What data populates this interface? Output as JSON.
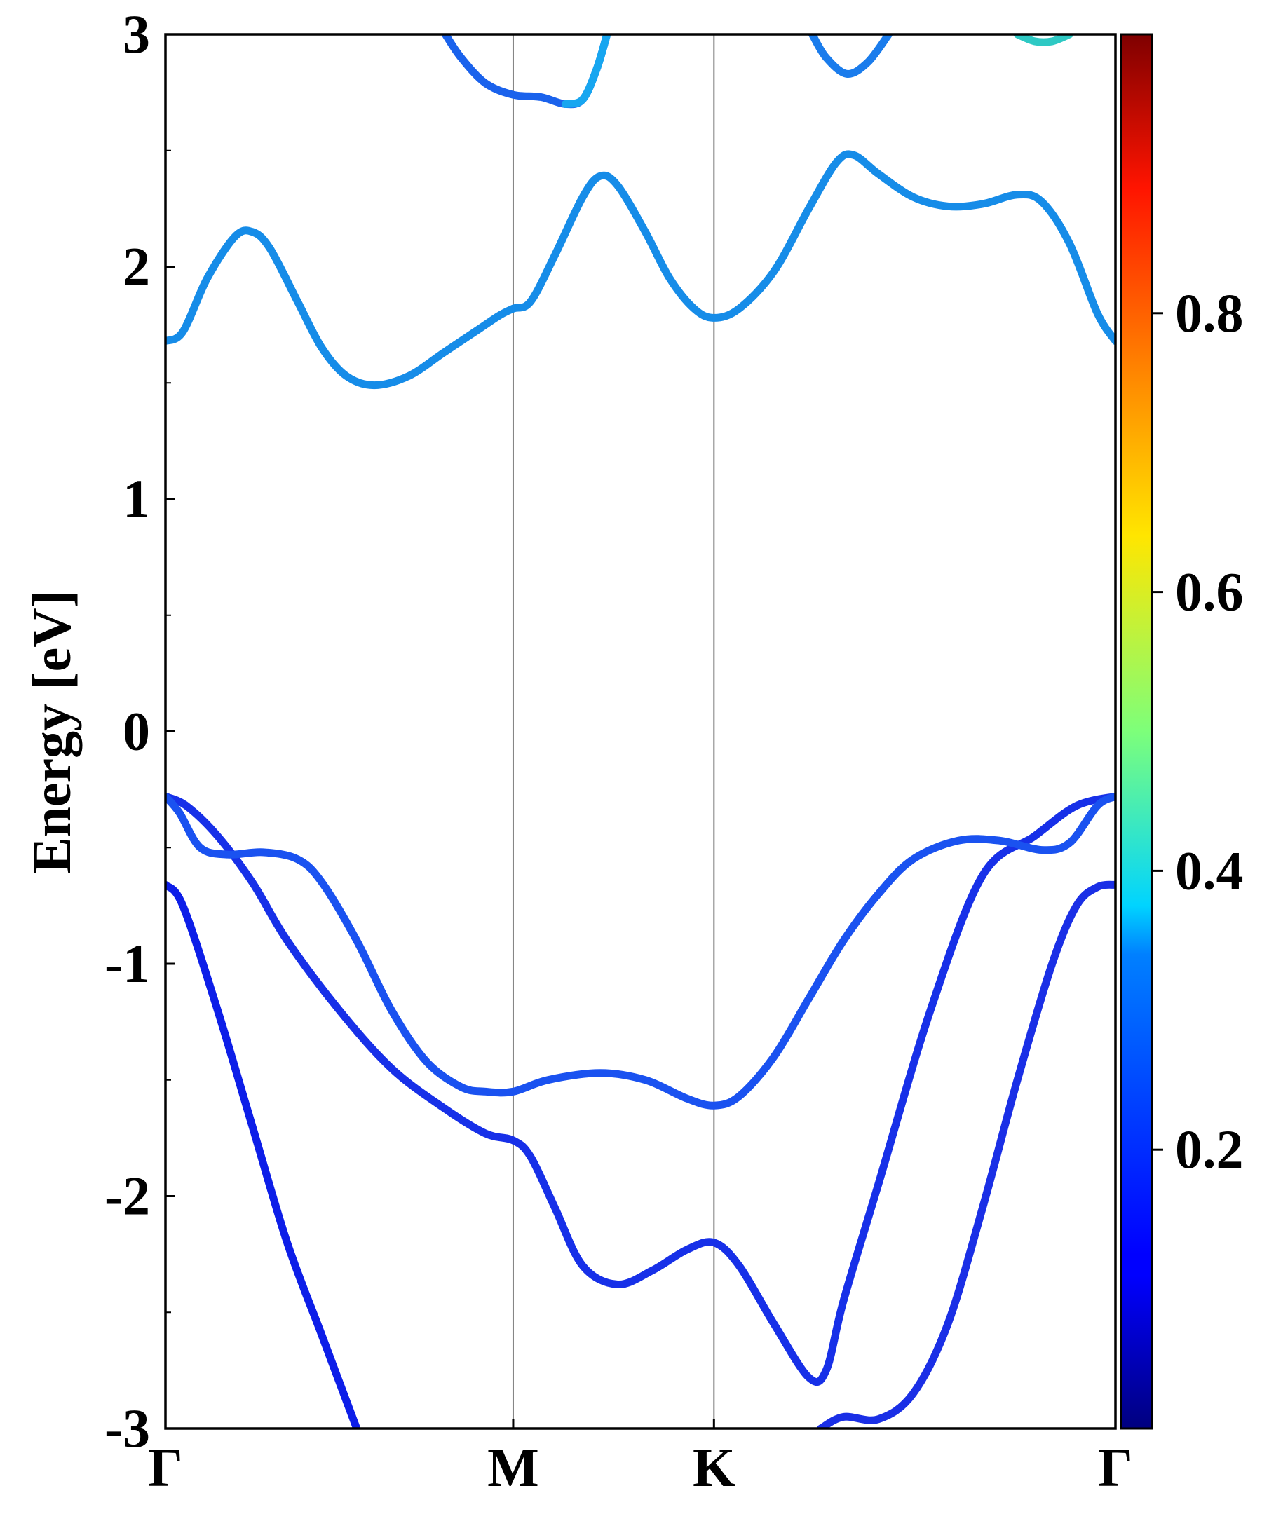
{
  "chart_data": {
    "type": "line",
    "title": "",
    "xlabel": "",
    "ylabel": "Energy [eV]",
    "ylim": [
      -3,
      3
    ],
    "y_ticks": [
      -3,
      -2,
      -1,
      0,
      1,
      2,
      3
    ],
    "y_tick_labels": [
      "-3",
      "-2",
      "-1",
      "0",
      "1",
      "2",
      "3"
    ],
    "x_ticks": [
      {
        "label": "Γ",
        "pos": 0.0
      },
      {
        "label": "M",
        "pos": 1.0
      },
      {
        "label": "K",
        "pos": 1.5774
      },
      {
        "label": "Γ",
        "pos": 2.7321
      }
    ],
    "xlim": [
      0,
      2.7321
    ],
    "grid": false,
    "vlines_at_ticks": true,
    "colorbar": {
      "range": [
        0,
        1
      ],
      "ticks": [
        0.2,
        0.4,
        0.6,
        0.8
      ],
      "tick_labels": [
        "0.2",
        "0.4",
        "0.6",
        "0.8"
      ],
      "colormap": "jet"
    },
    "series": [
      {
        "color": "#0d1ee8",
        "points": [
          [
            0,
            -0.66
          ],
          [
            0.05,
            -0.75
          ],
          [
            0.15,
            -1.2
          ],
          [
            0.25,
            -1.7
          ],
          [
            0.35,
            -2.2
          ],
          [
            0.45,
            -2.6
          ],
          [
            0.55,
            -3.0
          ]
        ]
      },
      {
        "color": "#1730e8",
        "points": [
          [
            0,
            -0.28
          ],
          [
            0.06,
            -0.32
          ],
          [
            0.15,
            -0.45
          ],
          [
            0.25,
            -0.65
          ],
          [
            0.35,
            -0.9
          ],
          [
            0.5,
            -1.2
          ],
          [
            0.65,
            -1.45
          ],
          [
            0.8,
            -1.62
          ],
          [
            0.92,
            -1.73
          ],
          [
            1.0,
            -1.76
          ],
          [
            1.05,
            -1.83
          ],
          [
            1.12,
            -2.05
          ],
          [
            1.2,
            -2.3
          ],
          [
            1.3,
            -2.38
          ],
          [
            1.4,
            -2.32
          ],
          [
            1.5,
            -2.23
          ],
          [
            1.5774,
            -2.2
          ],
          [
            1.65,
            -2.3
          ],
          [
            1.75,
            -2.55
          ],
          [
            1.85,
            -2.78
          ],
          [
            1.9,
            -2.75
          ],
          [
            1.95,
            -2.45
          ],
          [
            2.05,
            -1.95
          ],
          [
            2.2,
            -1.2
          ],
          [
            2.35,
            -0.62
          ],
          [
            2.5,
            -0.45
          ],
          [
            2.62,
            -0.32
          ],
          [
            2.7321,
            -0.28
          ]
        ]
      },
      {
        "color": "#1a52f0",
        "points": [
          [
            0,
            -0.28
          ],
          [
            0.04,
            -0.35
          ],
          [
            0.1,
            -0.5
          ],
          [
            0.18,
            -0.53
          ],
          [
            0.28,
            -0.52
          ],
          [
            0.38,
            -0.55
          ],
          [
            0.45,
            -0.65
          ],
          [
            0.55,
            -0.9
          ],
          [
            0.65,
            -1.2
          ],
          [
            0.75,
            -1.42
          ],
          [
            0.85,
            -1.53
          ],
          [
            0.92,
            -1.55
          ],
          [
            1.0,
            -1.55
          ],
          [
            1.1,
            -1.5
          ],
          [
            1.25,
            -1.47
          ],
          [
            1.38,
            -1.5
          ],
          [
            1.5,
            -1.58
          ],
          [
            1.5774,
            -1.61
          ],
          [
            1.65,
            -1.57
          ],
          [
            1.75,
            -1.4
          ],
          [
            1.85,
            -1.15
          ],
          [
            1.95,
            -0.9
          ],
          [
            2.05,
            -0.7
          ],
          [
            2.15,
            -0.55
          ],
          [
            2.28,
            -0.47
          ],
          [
            2.4,
            -0.47
          ],
          [
            2.52,
            -0.51
          ],
          [
            2.6,
            -0.48
          ],
          [
            2.68,
            -0.32
          ],
          [
            2.7321,
            -0.28
          ]
        ]
      },
      {
        "color": "#1a2fe6",
        "points": [
          [
            1.8846,
            -3.0
          ],
          [
            1.95,
            -2.95
          ],
          [
            2.05,
            -2.96
          ],
          [
            2.15,
            -2.85
          ],
          [
            2.25,
            -2.55
          ],
          [
            2.35,
            -2.05
          ],
          [
            2.45,
            -1.5
          ],
          [
            2.55,
            -1.0
          ],
          [
            2.62,
            -0.75
          ],
          [
            2.68,
            -0.67
          ],
          [
            2.7321,
            -0.66
          ]
        ]
      },
      {
        "color": "#168ce8",
        "points": [
          [
            0,
            1.68
          ],
          [
            0.05,
            1.72
          ],
          [
            0.12,
            1.95
          ],
          [
            0.2,
            2.13
          ],
          [
            0.25,
            2.15
          ],
          [
            0.3,
            2.08
          ],
          [
            0.38,
            1.85
          ],
          [
            0.45,
            1.65
          ],
          [
            0.52,
            1.53
          ],
          [
            0.6,
            1.49
          ],
          [
            0.7,
            1.53
          ],
          [
            0.8,
            1.63
          ],
          [
            0.9,
            1.73
          ],
          [
            0.96,
            1.79
          ],
          [
            1.0,
            1.82
          ],
          [
            1.05,
            1.85
          ],
          [
            1.12,
            2.05
          ],
          [
            1.2,
            2.3
          ],
          [
            1.25,
            2.39
          ],
          [
            1.3,
            2.35
          ],
          [
            1.38,
            2.15
          ],
          [
            1.45,
            1.95
          ],
          [
            1.52,
            1.82
          ],
          [
            1.5774,
            1.78
          ],
          [
            1.65,
            1.82
          ],
          [
            1.75,
            1.98
          ],
          [
            1.85,
            2.25
          ],
          [
            1.93,
            2.45
          ],
          [
            1.98,
            2.48
          ],
          [
            2.05,
            2.4
          ],
          [
            2.15,
            2.3
          ],
          [
            2.25,
            2.26
          ],
          [
            2.35,
            2.27
          ],
          [
            2.45,
            2.31
          ],
          [
            2.52,
            2.28
          ],
          [
            2.6,
            2.1
          ],
          [
            2.68,
            1.8
          ],
          [
            2.7321,
            1.68
          ]
        ]
      },
      {
        "color": "#1a62ec",
        "points": [
          [
            0.805,
            3.0
          ],
          [
            0.85,
            2.9
          ],
          [
            0.92,
            2.79
          ],
          [
            1.0,
            2.74
          ],
          [
            1.08,
            2.73
          ],
          [
            1.15,
            2.7
          ],
          [
            1.2,
            2.72
          ],
          [
            1.24,
            2.85
          ],
          [
            1.27,
            3.0
          ]
        ]
      },
      {
        "color": "#17a6f0",
        "points": [
          [
            1.15,
            2.7
          ],
          [
            1.2,
            2.72
          ],
          [
            1.24,
            2.85
          ],
          [
            1.27,
            3.0
          ]
        ]
      },
      {
        "color": "#1a7cec",
        "points": [
          [
            1.86,
            3.0
          ],
          [
            1.9,
            2.9
          ],
          [
            1.96,
            2.83
          ],
          [
            2.02,
            2.88
          ],
          [
            2.08,
            3.0
          ]
        ]
      },
      {
        "color": "#2ec9c4",
        "points": [
          [
            2.45,
            3.0
          ],
          [
            2.5,
            2.97
          ],
          [
            2.55,
            2.97
          ],
          [
            2.6,
            3.0
          ]
        ]
      }
    ]
  }
}
